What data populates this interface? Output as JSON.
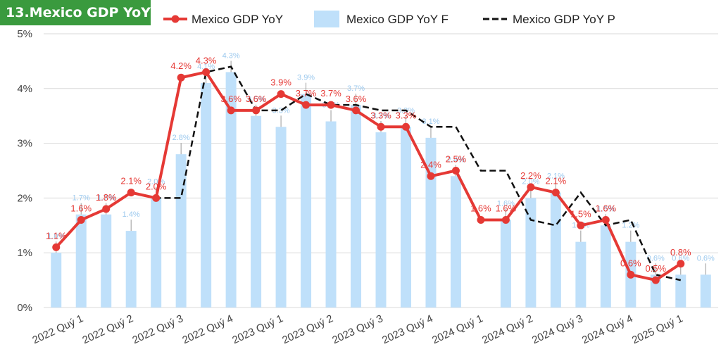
{
  "title": "13.Mexico GDP YoY",
  "colors": {
    "actual": "#e53935",
    "forecast_bar": "#bfe0fa",
    "previous": "#111111",
    "title_bg": "#3a9a3e",
    "grid": "#d9d9d9",
    "blue_label": "#9cc9ee"
  },
  "chart_data": {
    "type": "bar",
    "title": "13.Mexico GDP YoY",
    "ylim": [
      0,
      5
    ],
    "yticks": [
      "0%",
      "1%",
      "2%",
      "3%",
      "4%",
      "5%"
    ],
    "grid": true,
    "legend_position": "top",
    "x_labels": [
      "2022 Quý 1",
      "2022 Quý 2",
      "2022 Quý 3",
      "2022 Quý 4",
      "2023 Quý 1",
      "2023 Quý 2",
      "2023 Quý 3",
      "2023 Quý 4",
      "2024 Quý 1",
      "2024 Quý 2",
      "2024 Quý 3",
      "2024 Quý 4",
      "2025 Quý 1"
    ],
    "periods": 27,
    "series": [
      {
        "name": "Mexico GDP YoY",
        "kind": "line-markers",
        "values": [
          1.1,
          1.6,
          1.8,
          2.1,
          2.0,
          4.2,
          4.3,
          3.6,
          3.6,
          3.9,
          3.7,
          3.7,
          3.6,
          3.3,
          3.3,
          2.4,
          2.5,
          1.6,
          1.6,
          2.2,
          2.1,
          1.5,
          1.6,
          0.6,
          0.5,
          0.8
        ],
        "labels": [
          "1.1%",
          "1.6%",
          "1.8%",
          "2.1%",
          "2.0%",
          "4.2%",
          "4.3%",
          "3.6%",
          "3.6%",
          "3.9%",
          "3.7%",
          "3.7%",
          "3.6%",
          "3.3%",
          "3.3%",
          "2.4%",
          "2.5%",
          "1.6%",
          "1.6%",
          "2.2%",
          "2.1%",
          "1.5%",
          "1.6%",
          "0.6%",
          "0.5%",
          "0.8%"
        ]
      },
      {
        "name": "Mexico GDP YoY F",
        "kind": "bar",
        "values": [
          1.0,
          1.7,
          1.7,
          1.4,
          2.0,
          2.8,
          4.1,
          4.3,
          3.5,
          3.3,
          3.9,
          3.4,
          3.7,
          3.2,
          3.3,
          3.1,
          2.4,
          null,
          1.6,
          2.0,
          2.1,
          1.2,
          1.5,
          1.2,
          0.6,
          0.6,
          0.6
        ],
        "labels": [
          "1.0%",
          "1.7%",
          "1.7%",
          "1.4%",
          "2.0%",
          "2.8%",
          "4.1%",
          "4.3%",
          "3.5%",
          "3.3%",
          "3.9%",
          "3.4%",
          "3.7%",
          "3.2%",
          "3.3%",
          "3.1%",
          "2.4%",
          "",
          "1.6%",
          "2.0%",
          "2.1%",
          "1.2%",
          "1.5%",
          "1.2%",
          "0.6%",
          "0.6%",
          "0.6%"
        ]
      },
      {
        "name": "Mexico GDP YoY P",
        "kind": "dashed-line",
        "values": [
          1.1,
          1.6,
          1.8,
          2.1,
          2.0,
          2.0,
          4.3,
          4.4,
          3.6,
          3.6,
          3.9,
          3.7,
          3.7,
          3.6,
          3.6,
          3.3,
          3.3,
          2.5,
          2.5,
          1.6,
          1.5,
          2.1,
          1.5,
          1.6,
          0.6,
          0.5
        ]
      }
    ]
  }
}
